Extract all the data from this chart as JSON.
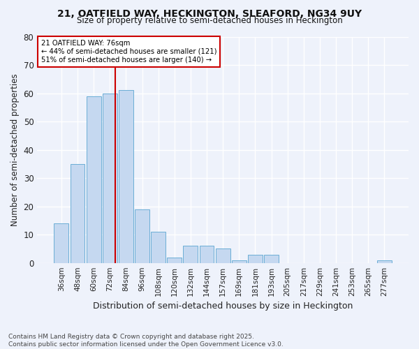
{
  "title": "21, OATFIELD WAY, HECKINGTON, SLEAFORD, NG34 9UY",
  "subtitle": "Size of property relative to semi-detached houses in Heckington",
  "xlabel": "Distribution of semi-detached houses by size in Heckington",
  "ylabel": "Number of semi-detached properties",
  "bar_labels": [
    "36sqm",
    "48sqm",
    "60sqm",
    "72sqm",
    "84sqm",
    "96sqm",
    "108sqm",
    "120sqm",
    "132sqm",
    "144sqm",
    "157sqm",
    "169sqm",
    "181sqm",
    "193sqm",
    "205sqm",
    "217sqm",
    "229sqm",
    "241sqm",
    "253sqm",
    "265sqm",
    "277sqm"
  ],
  "bar_values": [
    14,
    35,
    59,
    60,
    61,
    19,
    11,
    2,
    6,
    6,
    5,
    1,
    3,
    3,
    0,
    0,
    0,
    0,
    0,
    0,
    1
  ],
  "bar_color": "#c5d8f0",
  "bar_edgecolor": "#6baed6",
  "property_label": "21 OATFIELD WAY: 76sqm",
  "pct_smaller": 44,
  "count_smaller": 121,
  "pct_larger": 51,
  "count_larger": 140,
  "vline_color": "#cc0000",
  "annotation_box_facecolor": "#ffffff",
  "annotation_box_edgecolor": "#cc0000",
  "background_color": "#eef2fb",
  "grid_color": "#ffffff",
  "ylim": [
    0,
    80
  ],
  "yticks": [
    0,
    10,
    20,
    30,
    40,
    50,
    60,
    70,
    80
  ],
  "footnote": "Contains HM Land Registry data © Crown copyright and database right 2025.\nContains public sector information licensed under the Open Government Licence v3.0."
}
